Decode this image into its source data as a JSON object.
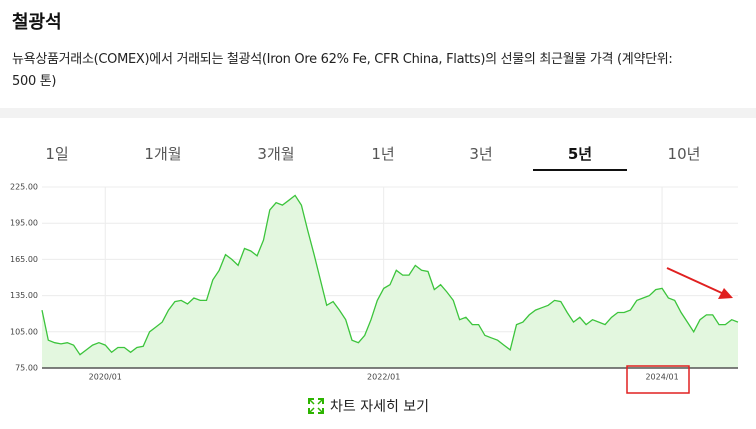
{
  "header": {
    "title": "철광석",
    "description_lines": [
      "뉴욕상품거래소(COMEX)에서 거래되는 철광석(Iron Ore 62% Fe, CFR China, Flatts)의 선물의 최근월물 가격 (계약단위:",
      "500 톤)"
    ]
  },
  "tabs": {
    "items": [
      "1일",
      "1개월",
      "3개월",
      "1년",
      "3년",
      "5년",
      "10년"
    ],
    "selected": 5
  },
  "link": "차트 자세히 보기",
  "chart_data": {
    "type": "area",
    "color": "#3cc43c",
    "fill": "#e3f7df",
    "categories": [
      null,
      null,
      null,
      null,
      null,
      null,
      null,
      null,
      null,
      null,
      "2020/01",
      null,
      null,
      null,
      null,
      null,
      null,
      null,
      null,
      null,
      null,
      null,
      null,
      null,
      null,
      null,
      null,
      null,
      null,
      null,
      null,
      null,
      null,
      null,
      null,
      null,
      null,
      null,
      null,
      null,
      null,
      null,
      null,
      null,
      null,
      null,
      null,
      null,
      null,
      null,
      null,
      null,
      null,
      null,
      "2022/01",
      null,
      null,
      null,
      null,
      null,
      null,
      null,
      null,
      null,
      null,
      null,
      null,
      null,
      null,
      null,
      null,
      null,
      null,
      null,
      null,
      null,
      null,
      null,
      null,
      null,
      null,
      null,
      null,
      null,
      null,
      null,
      null,
      null,
      null,
      null,
      null,
      null,
      null,
      null,
      null,
      null,
      null,
      null,
      "2024/01",
      null,
      null,
      null,
      null,
      null,
      null,
      null,
      null,
      null,
      null,
      null,
      null
    ],
    "values": [
      123,
      98,
      96,
      95,
      96,
      94,
      86,
      90,
      94,
      96,
      94,
      88,
      92,
      92,
      88,
      92,
      93,
      105,
      109,
      113,
      123,
      130,
      131,
      128,
      133,
      131,
      131,
      148,
      156,
      169,
      165,
      160,
      174,
      172,
      168,
      181,
      206,
      212,
      210,
      214,
      218,
      210,
      189,
      169,
      148,
      127,
      130,
      123,
      115,
      98,
      96,
      102,
      115,
      131,
      141,
      144,
      156,
      152,
      152,
      160,
      156,
      155,
      140,
      144,
      138,
      131,
      115,
      117,
      111,
      111,
      102,
      100,
      98,
      94,
      90,
      111,
      113,
      119,
      123,
      125,
      127,
      131,
      130,
      121,
      113,
      117,
      111,
      115,
      113,
      111,
      117,
      121,
      121,
      123,
      131,
      133,
      135,
      140,
      141,
      133,
      131,
      121,
      113,
      105,
      115,
      119,
      119,
      111,
      111,
      115,
      113
    ],
    "ylim": [
      75,
      225
    ],
    "yticks": [
      {
        "value": 75,
        "label": "75.00"
      },
      {
        "value": 105,
        "label": "105.00"
      },
      {
        "value": 135,
        "label": "135.00"
      },
      {
        "value": 165,
        "label": "165.00"
      },
      {
        "value": 195,
        "label": "195.00"
      },
      {
        "value": 225,
        "label": "225.00"
      }
    ],
    "grid": true
  }
}
